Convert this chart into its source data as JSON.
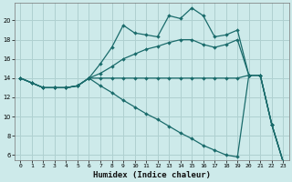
{
  "xlabel": "Humidex (Indice chaleur)",
  "background_color": "#cdeaea",
  "grid_color": "#afd0d0",
  "line_color": "#1a6b6b",
  "xlim": [
    -0.5,
    23.5
  ],
  "ylim": [
    5.5,
    21.8
  ],
  "yticks": [
    6,
    8,
    10,
    12,
    14,
    16,
    18,
    20
  ],
  "xticks": [
    0,
    1,
    2,
    3,
    4,
    5,
    6,
    7,
    8,
    9,
    10,
    11,
    12,
    13,
    14,
    15,
    16,
    17,
    18,
    19,
    20,
    21,
    22,
    23
  ],
  "series": [
    [
      14.0,
      13.5,
      13.0,
      13.0,
      13.0,
      13.2,
      14.0,
      15.5,
      17.2,
      19.5,
      18.7,
      18.5,
      18.3,
      20.5,
      20.2,
      21.3,
      20.5,
      18.3,
      18.5,
      19.0,
      14.3,
      14.3,
      9.2,
      5.3
    ],
    [
      14.0,
      13.5,
      13.0,
      13.0,
      13.0,
      13.2,
      14.0,
      14.5,
      15.2,
      16.0,
      16.5,
      17.0,
      17.3,
      17.7,
      18.0,
      18.0,
      17.5,
      17.2,
      17.5,
      18.0,
      14.3,
      14.3,
      9.2,
      5.3
    ],
    [
      14.0,
      13.5,
      13.0,
      13.0,
      13.0,
      13.2,
      14.0,
      14.0,
      14.0,
      14.0,
      14.0,
      14.0,
      14.0,
      14.0,
      14.0,
      14.0,
      14.0,
      14.0,
      14.0,
      14.0,
      14.3,
      14.3,
      9.2,
      5.3
    ],
    [
      14.0,
      13.5,
      13.0,
      13.0,
      13.0,
      13.2,
      14.0,
      13.2,
      12.5,
      11.7,
      11.0,
      10.3,
      9.7,
      9.0,
      8.3,
      7.7,
      7.0,
      6.5,
      6.0,
      5.8,
      14.3,
      14.3,
      9.2,
      5.3
    ]
  ]
}
